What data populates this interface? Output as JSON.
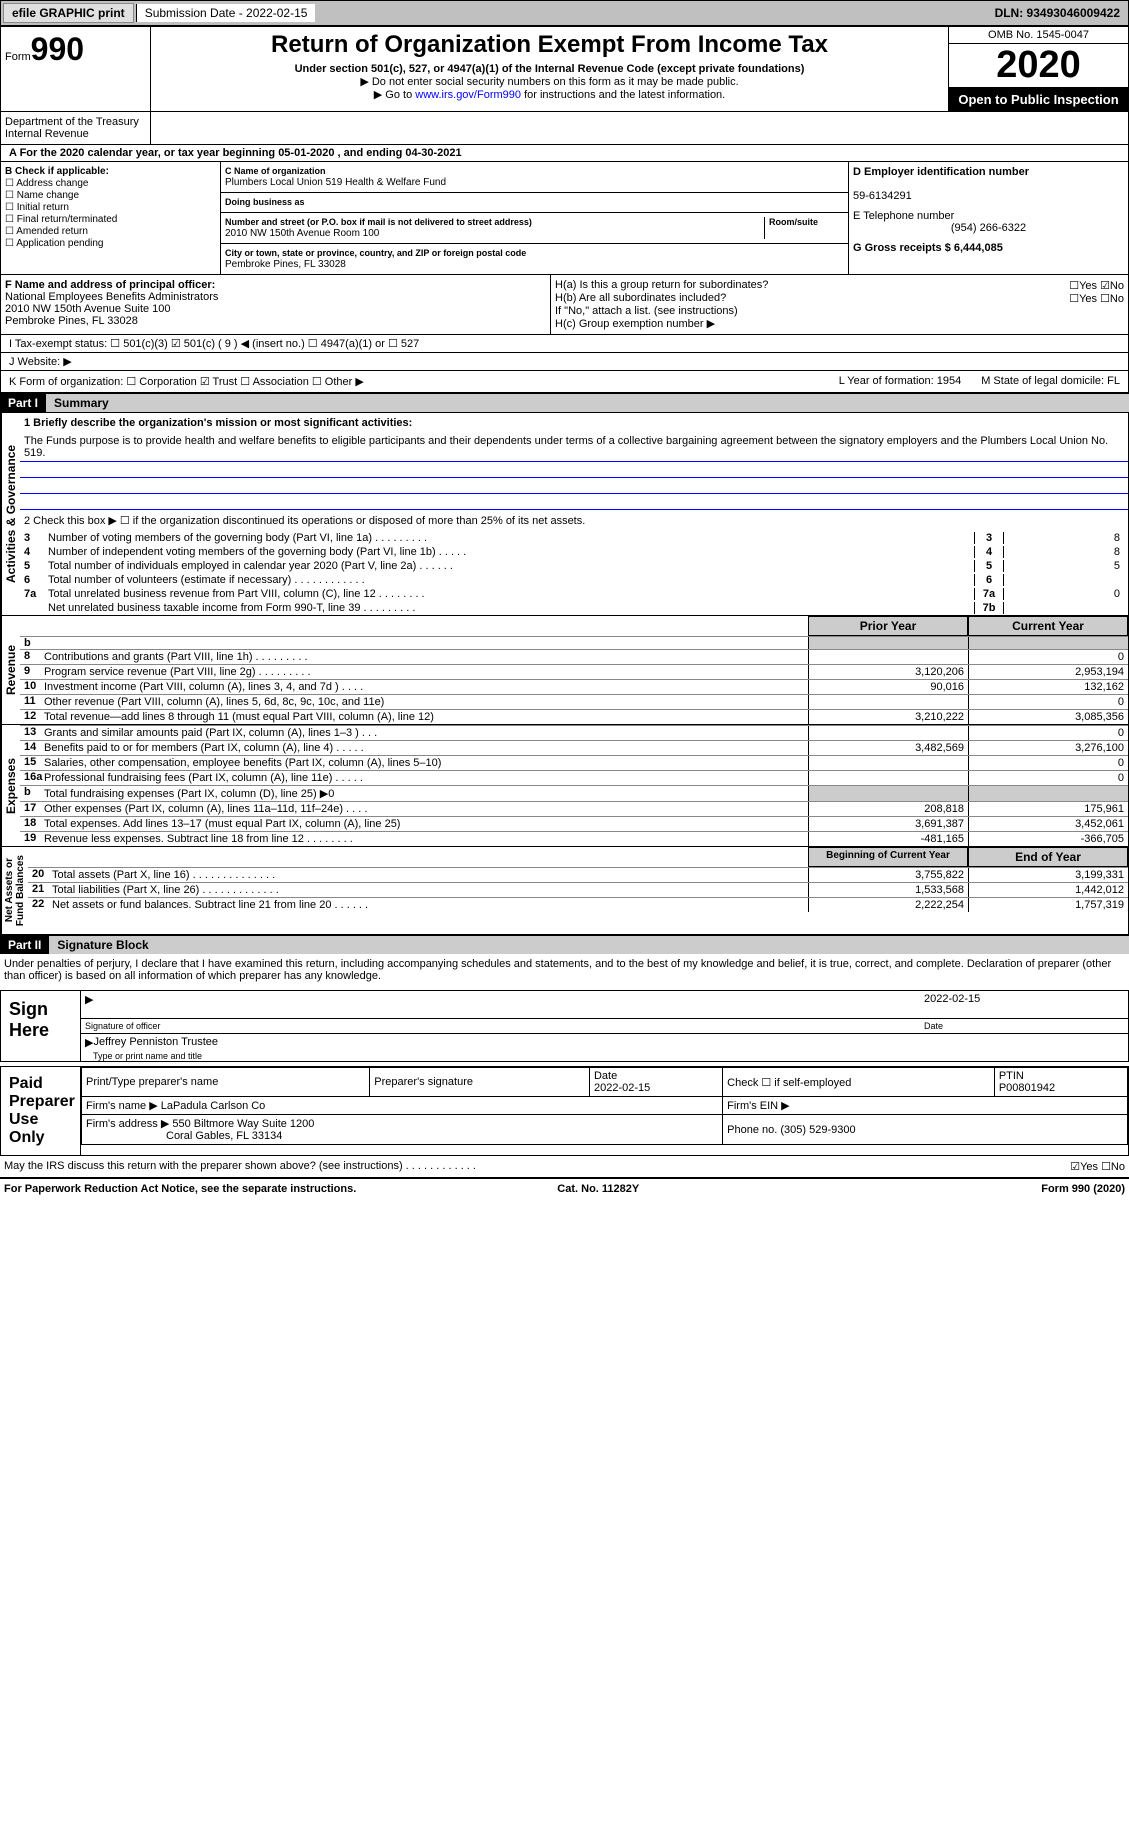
{
  "topbar": {
    "efile": "efile GRAPHIC print",
    "submission_label": "Submission Date - 2022-02-15",
    "dln": "DLN: 93493046009422"
  },
  "header": {
    "form_label": "Form",
    "form_number": "990",
    "title": "Return of Organization Exempt From Income Tax",
    "subtitle": "Under section 501(c), 527, or 4947(a)(1) of the Internal Revenue Code (except private foundations)",
    "note1": "▶ Do not enter social security numbers on this form as it may be made public.",
    "note2_pre": "▶ Go to ",
    "note2_link": "www.irs.gov/Form990",
    "note2_post": " for instructions and the latest information.",
    "omb": "OMB No. 1545-0047",
    "year": "2020",
    "inspect": "Open to Public Inspection",
    "dept": "Department of the Treasury\nInternal Revenue"
  },
  "row_a": "A For the 2020 calendar year, or tax year beginning 05-01-2020   , and ending 04-30-2021",
  "section_b": {
    "header": "B Check if applicable:",
    "items": [
      "☐ Address change",
      "☐ Name change",
      "☐ Initial return",
      "☐ Final return/terminated",
      "☐ Amended return",
      "☐ Application pending"
    ]
  },
  "section_c": {
    "name_label": "C Name of organization",
    "name": "Plumbers Local Union 519 Health & Welfare Fund",
    "dba_label": "Doing business as",
    "dba": "",
    "addr_label": "Number and street (or P.O. box if mail is not delivered to street address)",
    "room_label": "Room/suite",
    "addr": "2010 NW 150th Avenue Room 100",
    "city_label": "City or town, state or province, country, and ZIP or foreign postal code",
    "city": "Pembroke Pines, FL  33028"
  },
  "section_d": {
    "ein_label": "D Employer identification number",
    "ein": "59-6134291",
    "phone_label": "E Telephone number",
    "phone": "(954) 266-6322",
    "gross_label": "G Gross receipts $ 6,444,085"
  },
  "section_f": {
    "label": "F  Name and address of principal officer:",
    "line1": "National Employees Benefits Administrators",
    "line2": "2010 NW 150th Avenue Suite 100",
    "line3": "Pembroke Pines, FL  33028"
  },
  "section_h": {
    "a": "H(a)  Is this a group return for subordinates?",
    "a_ans": "☐Yes ☑No",
    "b": "H(b)  Are all subordinates included?",
    "b_ans": "☐Yes ☐No",
    "b_note": "If \"No,\" attach a list. (see instructions)",
    "c": "H(c)  Group exemption number ▶"
  },
  "tax_status": "I    Tax-exempt status:     ☐ 501(c)(3)   ☑ 501(c) ( 9 ) ◀ (insert no.)    ☐ 4947(a)(1) or   ☐ 527",
  "website": "J    Website: ▶",
  "row_k": {
    "k": "K Form of organization:  ☐ Corporation  ☑ Trust  ☐ Association  ☐ Other ▶",
    "l": "L Year of formation: 1954",
    "m": "M State of legal domicile: FL"
  },
  "part1": {
    "hdr": "Part I",
    "title": "Summary",
    "q1": "1  Briefly describe the organization's mission or most significant activities:",
    "mission": "The Funds purpose is to provide health and welfare benefits to eligible participants and their dependents under terms of a collective bargaining agreement between the signatory employers and the Plumbers Local Union No. 519.",
    "q2": "2   Check this box ▶ ☐  if the organization discontinued its operations or disposed of more than 25% of its net assets.",
    "governance_label": "Activities & Governance",
    "lines_gov": [
      {
        "n": "3",
        "t": "Number of voting members of the governing body (Part VI, line 1a)  .    .    .    .    .    .    .    .    .",
        "b": "3",
        "v": "8"
      },
      {
        "n": "4",
        "t": "Number of independent voting members of the governing body (Part VI, line 1b)   .    .    .    .    .",
        "b": "4",
        "v": "8"
      },
      {
        "n": "5",
        "t": "Total number of individuals employed in calendar year 2020 (Part V, line 2a)   .    .    .    .    .    .",
        "b": "5",
        "v": "5"
      },
      {
        "n": "6",
        "t": "Total number of volunteers (estimate if necessary)  .    .    .    .    .    .    .    .    .    .    .    .",
        "b": "6",
        "v": ""
      },
      {
        "n": "7a",
        "t": "Total unrelated business revenue from Part VIII, column (C), line 12  .    .    .    .    .    .    .    .",
        "b": "7a",
        "v": "0"
      },
      {
        "n": "",
        "t": "Net unrelated business taxable income from Form 990-T, line 39   .    .    .    .    .    .    .    .    .",
        "b": "7b",
        "v": ""
      }
    ],
    "col_hdr1": "Prior Year",
    "col_hdr2": "Current Year",
    "revenue_label": "Revenue",
    "lines_rev": [
      {
        "n": "b",
        "t": "",
        "v1": "",
        "v2": "",
        "shade": true
      },
      {
        "n": "8",
        "t": "Contributions and grants (Part VIII, line 1h)   .    .    .    .    .    .    .    .    .",
        "v1": "",
        "v2": "0"
      },
      {
        "n": "9",
        "t": "Program service revenue (Part VIII, line 2g)   .    .    .    .    .    .    .    .    .",
        "v1": "3,120,206",
        "v2": "2,953,194"
      },
      {
        "n": "10",
        "t": "Investment income (Part VIII, column (A), lines 3, 4, and 7d )   .    .    .    .",
        "v1": "90,016",
        "v2": "132,162"
      },
      {
        "n": "11",
        "t": "Other revenue (Part VIII, column (A), lines 5, 6d, 8c, 9c, 10c, and 11e)",
        "v1": "",
        "v2": "0"
      },
      {
        "n": "12",
        "t": "Total revenue—add lines 8 through 11 (must equal Part VIII, column (A), line 12)",
        "v1": "3,210,222",
        "v2": "3,085,356"
      }
    ],
    "expenses_label": "Expenses",
    "lines_exp": [
      {
        "n": "13",
        "t": "Grants and similar amounts paid (Part IX, column (A), lines 1–3 )   .    .    .",
        "v1": "",
        "v2": "0"
      },
      {
        "n": "14",
        "t": "Benefits paid to or for members (Part IX, column (A), line 4)   .    .    .    .    .",
        "v1": "3,482,569",
        "v2": "3,276,100"
      },
      {
        "n": "15",
        "t": "Salaries, other compensation, employee benefits (Part IX, column (A), lines 5–10)",
        "v1": "",
        "v2": "0"
      },
      {
        "n": "16a",
        "t": "Professional fundraising fees (Part IX, column (A), line 11e)   .    .    .    .    .",
        "v1": "",
        "v2": "0"
      },
      {
        "n": "b",
        "t": "Total fundraising expenses (Part IX, column (D), line 25) ▶0",
        "v1": "",
        "v2": "",
        "shade": true
      },
      {
        "n": "17",
        "t": "Other expenses (Part IX, column (A), lines 11a–11d, 11f–24e)   .    .    .    .",
        "v1": "208,818",
        "v2": "175,961"
      },
      {
        "n": "18",
        "t": "Total expenses. Add lines 13–17 (must equal Part IX, column (A), line 25)",
        "v1": "3,691,387",
        "v2": "3,452,061"
      },
      {
        "n": "19",
        "t": "Revenue less expenses. Subtract line 18 from line 12 .    .    .    .    .    .    .    .",
        "v1": "-481,165",
        "v2": "-366,705"
      }
    ],
    "net_label": "Net Assets or\nFund Balances",
    "col_hdr3": "Beginning of Current Year",
    "col_hdr4": "End of Year",
    "lines_net": [
      {
        "n": "20",
        "t": "Total assets (Part X, line 16)  .    .    .    .    .    .    .    .    .    .    .    .    .    .",
        "v1": "3,755,822",
        "v2": "3,199,331"
      },
      {
        "n": "21",
        "t": "Total liabilities (Part X, line 26)  .    .    .    .    .    .    .    .    .    .    .    .    .",
        "v1": "1,533,568",
        "v2": "1,442,012"
      },
      {
        "n": "22",
        "t": "Net assets or fund balances. Subtract line 21 from line 20 .    .    .    .    .    .",
        "v1": "2,222,254",
        "v2": "1,757,319"
      }
    ]
  },
  "part2": {
    "hdr": "Part II",
    "title": "Signature Block",
    "penalties": "Under penalties of perjury, I declare that I have examined this return, including accompanying schedules and statements, and to the best of my knowledge and belief, it is true, correct, and complete. Declaration of preparer (other than officer) is based on all information of which preparer has any knowledge."
  },
  "sign": {
    "label": "Sign Here",
    "sig_label": "Signature of officer",
    "date_label": "Date",
    "date": "2022-02-15",
    "name": "Jeffrey Penniston  Trustee",
    "name_label": "Type or print name and title"
  },
  "prep": {
    "label": "Paid Preparer Use Only",
    "c1": "Print/Type preparer's name",
    "c2": "Preparer's signature",
    "c3": "Date\n2022-02-15",
    "c4": "Check ☐ if self-employed",
    "c5": "PTIN\nP00801942",
    "firm_label": "Firm's name    ▶ LaPadula Carlson Co",
    "ein_label": "Firm's EIN ▶",
    "addr_label": "Firm's address ▶ 550 Biltmore Way Suite 1200",
    "addr2": "Coral Gables, FL  33134",
    "phone": "Phone no. (305) 529-9300"
  },
  "discuss": "May the IRS discuss this return with the preparer shown above? (see instructions)   .    .    .    .    .    .    .    .    .    .    .    .",
  "discuss_ans": "☑Yes  ☐No",
  "footer": {
    "left": "For Paperwork Reduction Act Notice, see the separate instructions.",
    "mid": "Cat. No. 11282Y",
    "right": "Form 990 (2020)"
  }
}
